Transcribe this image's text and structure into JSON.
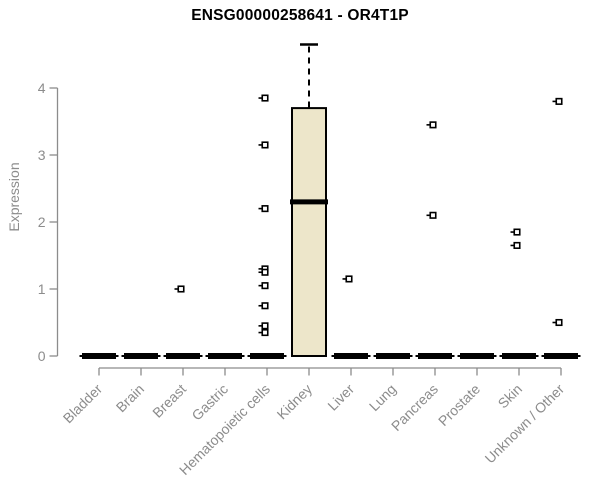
{
  "chart_data": {
    "type": "boxplot",
    "title": "ENSG00000258641 - OR4T1P",
    "xlabel": "",
    "ylabel": "Expression",
    "ylim": [
      0,
      4.7
    ],
    "yticks": [
      0,
      1,
      2,
      3,
      4
    ],
    "grid": false,
    "legend": "none",
    "categories": [
      "Bladder",
      "Brain",
      "Breast",
      "Gastric",
      "Hematopoietic cells",
      "Kidney",
      "Liver",
      "Lung",
      "Pancreas",
      "Prostate",
      "Skin",
      "Unknown / Other"
    ],
    "series": [
      {
        "category": "Bladder",
        "q1": 0,
        "median": 0,
        "q3": 0,
        "whiskerLow": 0,
        "whiskerHigh": 0,
        "outliers": []
      },
      {
        "category": "Brain",
        "q1": 0,
        "median": 0,
        "q3": 0,
        "whiskerLow": 0,
        "whiskerHigh": 0,
        "outliers": []
      },
      {
        "category": "Breast",
        "q1": 0,
        "median": 0,
        "q3": 0,
        "whiskerLow": 0,
        "whiskerHigh": 0,
        "outliers": [
          1.0
        ]
      },
      {
        "category": "Gastric",
        "q1": 0,
        "median": 0,
        "q3": 0,
        "whiskerLow": 0,
        "whiskerHigh": 0,
        "outliers": []
      },
      {
        "category": "Hematopoietic cells",
        "q1": 0,
        "median": 0,
        "q3": 0,
        "whiskerLow": 0,
        "whiskerHigh": 0,
        "outliers": [
          3.85,
          3.15,
          2.2,
          1.3,
          1.25,
          1.05,
          0.75,
          0.45,
          0.35
        ]
      },
      {
        "category": "Kidney",
        "q1": 0,
        "median": 2.3,
        "q3": 3.7,
        "whiskerLow": 0,
        "whiskerHigh": 4.65,
        "outliers": []
      },
      {
        "category": "Liver",
        "q1": 0,
        "median": 0,
        "q3": 0,
        "whiskerLow": 0,
        "whiskerHigh": 0,
        "outliers": [
          1.15
        ]
      },
      {
        "category": "Lung",
        "q1": 0,
        "median": 0,
        "q3": 0,
        "whiskerLow": 0,
        "whiskerHigh": 0,
        "outliers": []
      },
      {
        "category": "Pancreas",
        "q1": 0,
        "median": 0,
        "q3": 0,
        "whiskerLow": 0,
        "whiskerHigh": 0,
        "outliers": [
          3.45,
          2.1
        ]
      },
      {
        "category": "Prostate",
        "q1": 0,
        "median": 0,
        "q3": 0,
        "whiskerLow": 0,
        "whiskerHigh": 0,
        "outliers": []
      },
      {
        "category": "Skin",
        "q1": 0,
        "median": 0,
        "q3": 0,
        "whiskerLow": 0,
        "whiskerHigh": 0,
        "outliers": [
          1.85,
          1.65
        ]
      },
      {
        "category": "Unknown / Other",
        "q1": 0,
        "median": 0,
        "q3": 0,
        "whiskerLow": 0,
        "whiskerHigh": 0,
        "outliers": [
          3.8,
          0.5
        ]
      }
    ],
    "colors": {
      "box_fill": "#ede6ca",
      "box_stroke": "#000000",
      "median": "#000000",
      "outlier_stroke": "#000000",
      "outlier_fill": "#ffffff",
      "axis": "#8c8c8c",
      "title": "#000000"
    },
    "marker": "open-square"
  }
}
